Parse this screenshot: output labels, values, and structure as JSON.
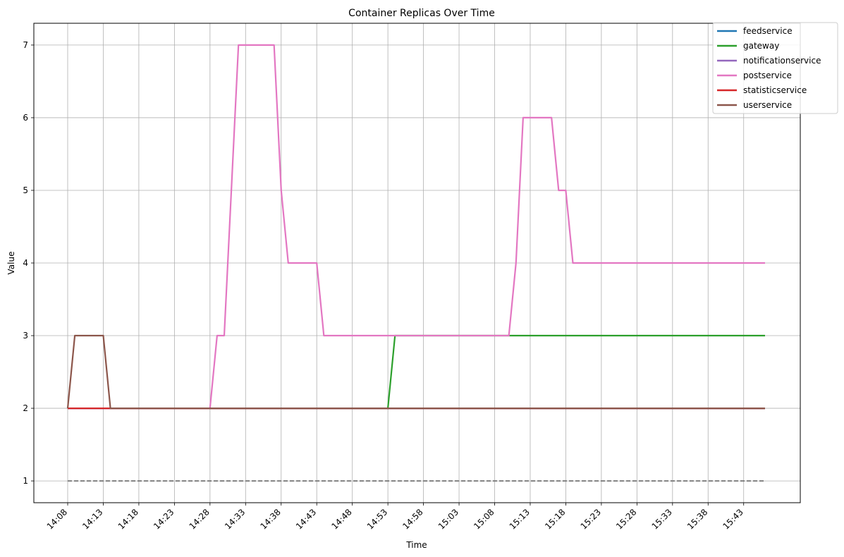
{
  "chart_data": {
    "type": "line",
    "title": "Container Replicas Over Time",
    "xlabel": "Time",
    "ylabel": "Value",
    "grid": true,
    "legend_position": "top-right",
    "x_start": "14:08",
    "x_end": "15:46",
    "ylim": [
      0.7,
      7.3
    ],
    "x_ticks": [
      "14:08",
      "14:13",
      "14:18",
      "14:23",
      "14:28",
      "14:33",
      "14:38",
      "14:43",
      "14:48",
      "14:53",
      "14:58",
      "15:03",
      "15:08",
      "15:13",
      "15:18",
      "15:23",
      "15:28",
      "15:33",
      "15:38",
      "15:43"
    ],
    "y_ticks": [
      1,
      2,
      3,
      4,
      5,
      6,
      7
    ],
    "series": [
      {
        "name": "feedservice",
        "color": "#1f77b4",
        "points": [
          [
            "14:08",
            2
          ],
          [
            "15:46",
            2
          ]
        ]
      },
      {
        "name": "gateway",
        "color": "#2ca02c",
        "points": [
          [
            "14:08",
            2
          ],
          [
            "14:53",
            2
          ],
          [
            "14:54",
            3
          ],
          [
            "15:46",
            3
          ]
        ]
      },
      {
        "name": "notificationservice",
        "color": "#9467bd",
        "points": [
          [
            "14:08",
            2
          ],
          [
            "15:46",
            2
          ]
        ]
      },
      {
        "name": "postservice",
        "color": "#e377c2",
        "points": [
          [
            "14:08",
            2
          ],
          [
            "14:28",
            2
          ],
          [
            "14:29",
            3
          ],
          [
            "14:30",
            3
          ],
          [
            "14:32",
            7
          ],
          [
            "14:37",
            7
          ],
          [
            "14:38",
            5
          ],
          [
            "14:39",
            4
          ],
          [
            "14:43",
            4
          ],
          [
            "14:44",
            3
          ],
          [
            "15:10",
            3
          ],
          [
            "15:11",
            4
          ],
          [
            "15:12",
            6
          ],
          [
            "15:16",
            6
          ],
          [
            "15:17",
            5
          ],
          [
            "15:18",
            5
          ],
          [
            "15:19",
            4
          ],
          [
            "15:46",
            4
          ]
        ]
      },
      {
        "name": "statisticservice",
        "color": "#d62728",
        "points": [
          [
            "14:08",
            2
          ],
          [
            "15:46",
            2
          ]
        ]
      },
      {
        "name": "userservice",
        "color": "#8c564b",
        "points": [
          [
            "14:08",
            2
          ],
          [
            "14:09",
            3
          ],
          [
            "14:13",
            3
          ],
          [
            "14:14",
            2
          ],
          [
            "15:46",
            2
          ]
        ]
      }
    ],
    "reference_line": {
      "value": 1,
      "style": "dashed",
      "color": "#808080"
    }
  }
}
